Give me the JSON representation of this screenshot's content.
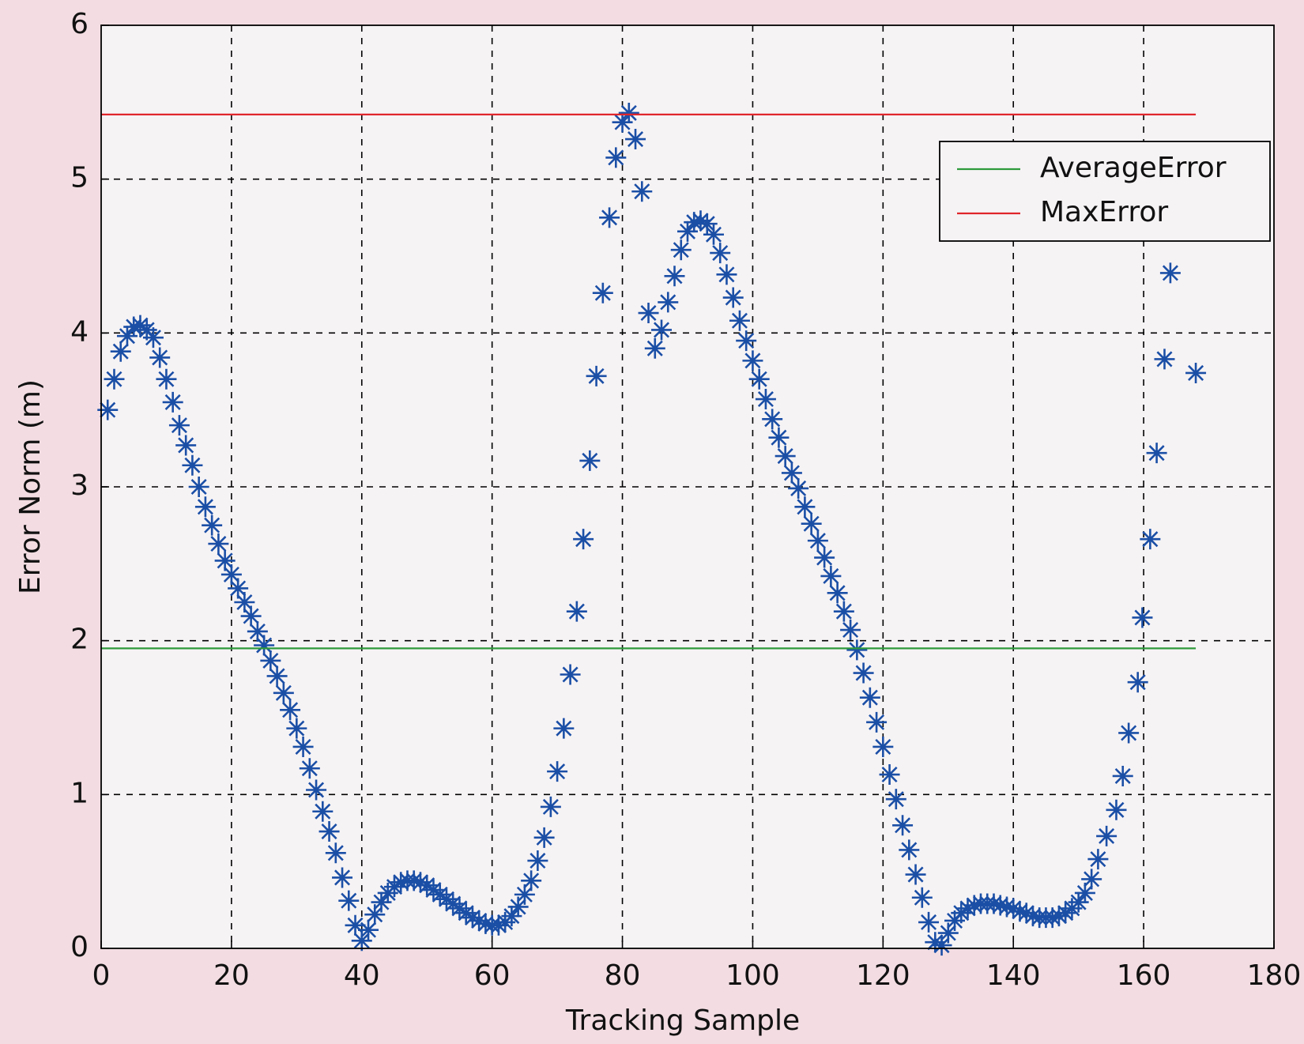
{
  "chart_data": {
    "type": "scatter",
    "x_label": "Tracking Sample",
    "y_label": "Error Norm (m)",
    "xlim": [
      0,
      180
    ],
    "ylim": [
      0,
      6
    ],
    "xticks": [
      0,
      20,
      40,
      60,
      80,
      100,
      120,
      140,
      160,
      180
    ],
    "yticks": [
      0,
      1,
      2,
      3,
      4,
      5,
      6
    ],
    "grid": true,
    "legend": "upper right",
    "series": [
      {
        "color": "#1b4fa6",
        "marker": "*",
        "x": [
          1,
          2,
          3,
          4,
          5,
          6,
          7,
          8,
          9,
          10,
          11,
          12,
          13,
          14,
          15,
          16,
          17,
          18,
          19,
          20,
          21,
          22,
          23,
          24,
          25,
          26,
          27,
          28,
          29,
          30,
          31,
          32,
          33,
          34,
          35,
          36,
          37,
          38,
          39,
          40,
          41,
          42,
          43,
          44,
          45,
          46,
          47,
          48,
          49,
          50,
          51,
          52,
          53,
          54,
          55,
          56,
          57,
          58,
          59,
          60,
          61,
          62,
          63,
          64,
          65,
          66,
          67,
          68,
          69,
          70,
          71,
          72,
          73,
          74,
          75,
          76,
          77,
          78,
          79,
          80,
          81,
          82,
          83,
          84,
          85,
          86,
          87,
          88,
          89,
          90,
          91,
          92,
          93,
          94,
          95,
          96,
          97,
          98,
          99,
          100,
          101,
          102,
          103,
          104,
          105,
          106,
          107,
          108,
          109,
          110,
          111,
          112,
          113,
          114,
          115,
          116,
          117,
          118,
          119,
          120,
          121,
          122,
          123,
          124,
          125,
          126,
          127,
          128,
          129,
          130,
          131,
          132,
          133,
          134,
          135,
          136,
          137,
          138,
          139,
          140,
          141,
          142,
          143,
          144,
          145,
          146,
          147,
          148,
          149,
          150,
          151,
          152,
          153,
          154.3,
          155.8,
          156.8,
          157.7,
          159.1,
          159.8,
          161,
          162,
          163.2,
          164.1,
          168
        ],
        "values": [
          3.5,
          3.7,
          3.88,
          3.98,
          4.04,
          4.05,
          4.02,
          3.97,
          3.84,
          3.7,
          3.55,
          3.4,
          3.27,
          3.14,
          3.0,
          2.87,
          2.75,
          2.63,
          2.52,
          2.43,
          2.34,
          2.25,
          2.16,
          2.06,
          1.97,
          1.87,
          1.77,
          1.66,
          1.55,
          1.43,
          1.31,
          1.17,
          1.03,
          0.89,
          0.76,
          0.62,
          0.46,
          0.31,
          0.15,
          0.05,
          0.12,
          0.22,
          0.3,
          0.36,
          0.4,
          0.43,
          0.44,
          0.44,
          0.43,
          0.41,
          0.38,
          0.35,
          0.32,
          0.29,
          0.26,
          0.23,
          0.2,
          0.18,
          0.16,
          0.15,
          0.15,
          0.17,
          0.21,
          0.27,
          0.35,
          0.44,
          0.57,
          0.72,
          0.92,
          1.15,
          1.43,
          1.78,
          2.19,
          2.66,
          3.17,
          3.72,
          4.26,
          4.75,
          5.14,
          5.37,
          5.43,
          5.26,
          4.92,
          4.13,
          3.9,
          4.02,
          4.2,
          4.37,
          4.54,
          4.66,
          4.72,
          4.73,
          4.71,
          4.64,
          4.52,
          4.38,
          4.23,
          4.08,
          3.95,
          3.82,
          3.7,
          3.57,
          3.44,
          3.32,
          3.2,
          3.09,
          2.99,
          2.87,
          2.76,
          2.65,
          2.54,
          2.42,
          2.31,
          2.19,
          2.07,
          1.94,
          1.79,
          1.63,
          1.47,
          1.31,
          1.13,
          0.97,
          0.8,
          0.64,
          0.48,
          0.33,
          0.17,
          0.04,
          0.02,
          0.1,
          0.18,
          0.23,
          0.26,
          0.28,
          0.29,
          0.29,
          0.29,
          0.28,
          0.27,
          0.26,
          0.24,
          0.23,
          0.21,
          0.2,
          0.2,
          0.2,
          0.21,
          0.23,
          0.26,
          0.3,
          0.36,
          0.45,
          0.58,
          0.73,
          0.9,
          1.12,
          1.4,
          1.73,
          2.15,
          2.66,
          3.22,
          3.83,
          4.39,
          3.74
        ]
      },
      {
        "name": "AverageError",
        "color": "#2e9a3c",
        "line": true,
        "x": [
          0,
          168
        ],
        "values": [
          1.95,
          1.95
        ]
      },
      {
        "name": "MaxError",
        "color": "#e0262b",
        "line": true,
        "x": [
          0,
          168
        ],
        "values": [
          5.42,
          5.42
        ]
      }
    ]
  }
}
